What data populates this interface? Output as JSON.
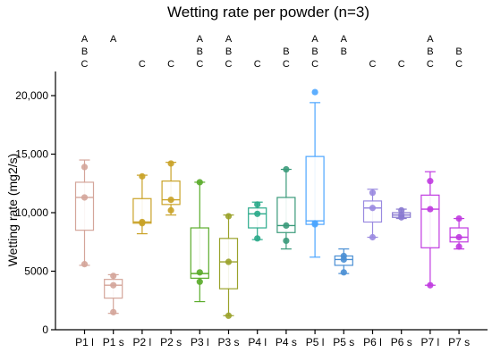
{
  "chart_data": {
    "type": "box",
    "title": "Wetting rate per powder (n=3)",
    "xlabel": "",
    "ylabel": "Wetting rate (mg2/s)",
    "ylim": [
      0,
      21500
    ],
    "yticks": [
      0,
      5000,
      10000,
      15000,
      20000
    ],
    "ytick_labels": [
      "0",
      "5000",
      "10,000",
      "15,000",
      "20,000"
    ],
    "grid": false,
    "legend": "none",
    "categories": [
      "P1 l",
      "P1 s",
      "P2 l",
      "P2 s",
      "P3 l",
      "P3 s",
      "P4 l",
      "P4 s",
      "P5 l",
      "P5 s",
      "P6 l",
      "P6 s",
      "P7 l",
      "P7 s"
    ],
    "colors": [
      "#d4a59a",
      "#d4a59a",
      "#c9a227",
      "#c9a227",
      "#5aab2a",
      "#9aa22a",
      "#2aaa8a",
      "#3a9a7a",
      "#4da6ff",
      "#4a8fd4",
      "#9a8ae0",
      "#8a7ad0",
      "#c03ae0",
      "#c03ae0"
    ],
    "letters": [
      [
        "A",
        "B",
        "C"
      ],
      [
        "A",
        "",
        ""
      ],
      [
        "",
        "",
        "C"
      ],
      [
        "",
        "",
        "C"
      ],
      [
        "A",
        "B",
        "C"
      ],
      [
        "A",
        "B",
        "C"
      ],
      [
        "",
        "",
        "C"
      ],
      [
        "",
        "B",
        "C"
      ],
      [
        "A",
        "B",
        "C"
      ],
      [
        "A",
        "B",
        ""
      ],
      [
        "",
        "",
        "C"
      ],
      [
        "",
        "",
        "C"
      ],
      [
        "A",
        "B",
        "C"
      ],
      [
        "",
        "B",
        "C"
      ]
    ],
    "boxes": [
      {
        "whisker_low": 5500,
        "q1": 8500,
        "median": 11300,
        "q3": 12600,
        "whisker_high": 14500,
        "points": [
          13900,
          11300,
          5600
        ]
      },
      {
        "whisker_low": 1400,
        "q1": 2700,
        "median": 3800,
        "q3": 4300,
        "whisker_high": 4700,
        "points": [
          4600,
          3800,
          1500
        ]
      },
      {
        "whisker_low": 8200,
        "q1": 9100,
        "median": 9200,
        "q3": 11200,
        "whisker_high": 13200,
        "points": [
          13100,
          9200,
          9100
        ]
      },
      {
        "whisker_low": 9800,
        "q1": 10700,
        "median": 11100,
        "q3": 12700,
        "whisker_high": 14300,
        "points": [
          14200,
          11100,
          10200
        ]
      },
      {
        "whisker_low": 2400,
        "q1": 4400,
        "median": 4800,
        "q3": 8700,
        "whisker_high": 12600,
        "points": [
          12600,
          4900,
          4100
        ]
      },
      {
        "whisker_low": 1200,
        "q1": 3500,
        "median": 5800,
        "q3": 7800,
        "whisker_high": 9800,
        "points": [
          9700,
          5800,
          1200
        ]
      },
      {
        "whisker_low": 7700,
        "q1": 8700,
        "median": 9900,
        "q3": 10400,
        "whisker_high": 10900,
        "points": [
          10700,
          9900,
          7800
        ]
      },
      {
        "whisker_low": 6900,
        "q1": 8300,
        "median": 8900,
        "q3": 11300,
        "whisker_high": 13700,
        "points": [
          13700,
          8900,
          7600
        ]
      },
      {
        "whisker_low": 6200,
        "q1": 9000,
        "median": 9300,
        "q3": 14800,
        "whisker_high": 19400,
        "points": [
          20300,
          9100,
          9000
        ]
      },
      {
        "whisker_low": 4800,
        "q1": 5500,
        "median": 6000,
        "q3": 6300,
        "whisker_high": 6900,
        "points": [
          6300,
          6000,
          4900
        ]
      },
      {
        "whisker_low": 7900,
        "q1": 9200,
        "median": 10400,
        "q3": 11000,
        "whisker_high": 12000,
        "points": [
          11700,
          10400,
          7900
        ]
      },
      {
        "whisker_low": 9500,
        "q1": 9600,
        "median": 9800,
        "q3": 10000,
        "whisker_high": 10300,
        "points": [
          10200,
          9800,
          9600
        ]
      },
      {
        "whisker_low": 3800,
        "q1": 7000,
        "median": 10300,
        "q3": 11500,
        "whisker_high": 13500,
        "points": [
          12700,
          10300,
          3800
        ]
      },
      {
        "whisker_low": 6900,
        "q1": 7500,
        "median": 7900,
        "q3": 8700,
        "whisker_high": 9500,
        "points": [
          9500,
          7900,
          7100
        ]
      }
    ]
  }
}
